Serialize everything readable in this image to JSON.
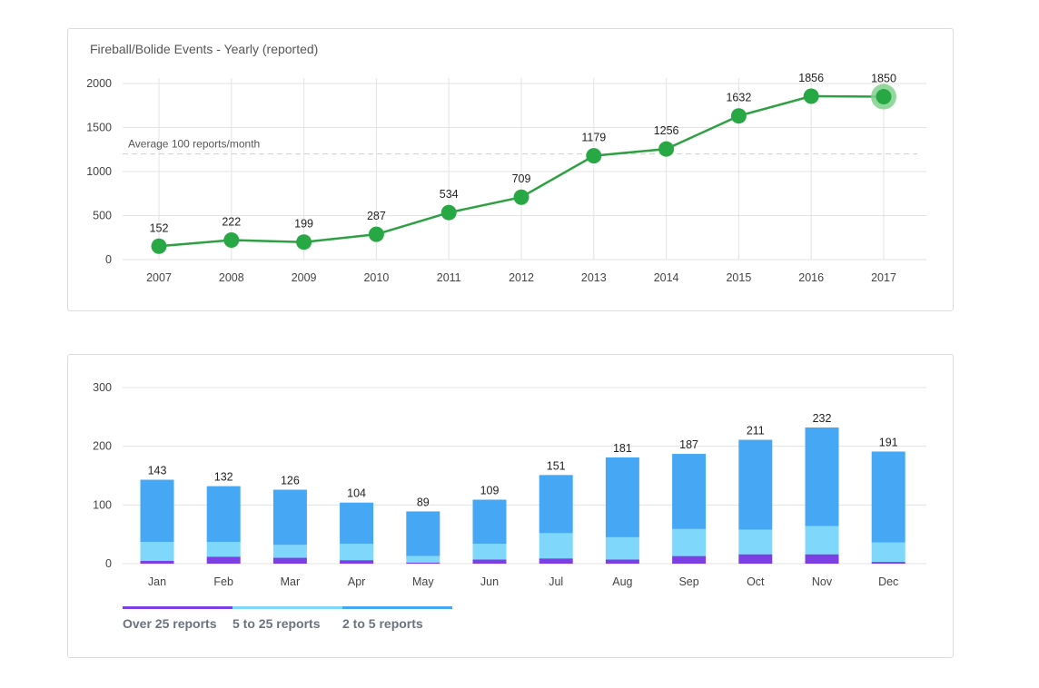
{
  "chart_data": [
    {
      "type": "line",
      "title": "Fireball/Bolide Events - Yearly (reported)",
      "x": [
        "2007",
        "2008",
        "2009",
        "2010",
        "2011",
        "2012",
        "2013",
        "2014",
        "2015",
        "2016",
        "2017"
      ],
      "values": [
        152,
        222,
        199,
        287,
        534,
        709,
        1179,
        1256,
        1632,
        1856,
        1850
      ],
      "ylim": [
        0,
        2000
      ],
      "yticks": [
        0,
        500,
        1000,
        1500,
        2000
      ],
      "grid": true,
      "annotation": {
        "label": "Average 100 reports/month",
        "y": 1200
      },
      "highlighted_point": "2017",
      "colors": {
        "line": "#2ea043",
        "point": "#28a745",
        "highlight": "#7fd08a"
      }
    },
    {
      "type": "bar",
      "stacked": true,
      "categories": [
        "Jan",
        "Feb",
        "Mar",
        "Apr",
        "May",
        "Jun",
        "Jul",
        "Aug",
        "Sep",
        "Oct",
        "Nov",
        "Dec"
      ],
      "totals": [
        143,
        132,
        126,
        104,
        89,
        109,
        151,
        181,
        187,
        211,
        232,
        191
      ],
      "series": [
        {
          "name": "Over 25 reports",
          "color": "#7b3fe4",
          "values": [
            5,
            12,
            10,
            6,
            2,
            7,
            9,
            7,
            13,
            16,
            16,
            3
          ]
        },
        {
          "name": "5 to 25 reports",
          "color": "#7fd7fb",
          "values": [
            32,
            25,
            22,
            28,
            11,
            27,
            43,
            38,
            46,
            42,
            48,
            33
          ]
        },
        {
          "name": "2 to 5 reports",
          "color": "#46a7f5",
          "values": [
            106,
            95,
            94,
            70,
            76,
            75,
            99,
            136,
            128,
            153,
            168,
            155
          ]
        }
      ],
      "ylim": [
        0,
        300
      ],
      "yticks": [
        0,
        100,
        200,
        300
      ],
      "grid": true,
      "legend": "bottom-left"
    }
  ]
}
